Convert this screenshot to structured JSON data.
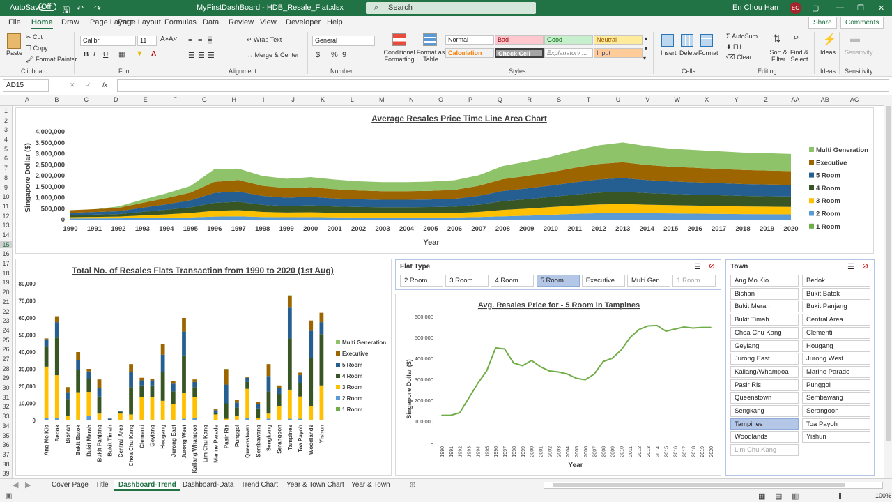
{
  "titlebar": {
    "autosave": "AutoSave",
    "autosave_state": "Off",
    "doc_title": "MyFirstDashBoard - HDB_Resale_Flat.xlsx",
    "search": "Search",
    "user": "En Chou Han",
    "initials": "EC"
  },
  "ribbon_tabs": [
    "File",
    "Home",
    "Draw",
    "Page Layout",
    "Formulas",
    "Data",
    "Review",
    "View",
    "Developer",
    "Help"
  ],
  "share": "Share",
  "comments": "Comments",
  "ribbon": {
    "clipboard": {
      "label": "Clipboard",
      "paste": "Paste",
      "cut": "Cut",
      "copy": "Copy",
      "painter": "Format Painter"
    },
    "font": {
      "label": "Font",
      "name": "Calibri",
      "size": "11",
      "b": "B",
      "i": "I",
      "u": "U"
    },
    "alignment": {
      "label": "Alignment",
      "wrap": "Wrap Text",
      "merge": "Merge & Center"
    },
    "number": {
      "label": "Number",
      "format": "General",
      "cur": "$",
      "pct": "%",
      "comma": "9"
    },
    "styles": {
      "label": "Styles",
      "cond": "Conditional Formatting",
      "fmt_table": "Format as Table",
      "normal": "Normal",
      "bad": "Bad",
      "good": "Good",
      "neutral": "Neutral",
      "calc": "Calculation",
      "check": "Check Cell",
      "expl": "Explanatory ...",
      "input": "Input"
    },
    "cells": {
      "label": "Cells",
      "insert": "Insert",
      "delete": "Delete",
      "format": "Format"
    },
    "editing": {
      "label": "Editing",
      "autosum": "AutoSum",
      "fill": "Fill",
      "clear": "Clear",
      "sort": "Sort & Filter",
      "find": "Find & Select"
    },
    "ideas": {
      "label": "Ideas",
      "btn": "Ideas"
    },
    "sensitivity": {
      "label": "Sensitivity",
      "btn": "Sensitivity"
    }
  },
  "formula_bar": {
    "name_box": "AD15",
    "fx": "fx",
    "value": ""
  },
  "columns": [
    "A",
    "B",
    "C",
    "D",
    "E",
    "F",
    "G",
    "H",
    "I",
    "J",
    "K",
    "L",
    "M",
    "N",
    "O",
    "P",
    "Q",
    "R",
    "S",
    "T",
    "U",
    "V",
    "W",
    "X",
    "Y",
    "Z",
    "AA",
    "AB",
    "AC"
  ],
  "rows": [
    "1",
    "2",
    "3",
    "4",
    "5",
    "6",
    "7",
    "8",
    "9",
    "10",
    "11",
    "12",
    "13",
    "14",
    "15",
    "16",
    "17",
    "18",
    "19",
    "20",
    "21",
    "22",
    "23",
    "24",
    "25",
    "26",
    "27",
    "28",
    "29",
    "30",
    "31",
    "32",
    "33",
    "34",
    "35",
    "36",
    "37",
    "38",
    "39"
  ],
  "chart_data": [
    {
      "type": "area",
      "title": "Average Resales Price Time Line Area Chart",
      "xlabel": "Year",
      "ylabel": "Singapore Dollar ($)",
      "ylim": [
        0,
        4000000
      ],
      "yticks": [
        "4,000,000",
        "3,500,000",
        "3,000,000",
        "2,500,000",
        "2,000,000",
        "1,500,000",
        "1,000,000",
        "500,000",
        "0"
      ],
      "x": [
        "1990",
        "1991",
        "1992",
        "1993",
        "1994",
        "1995",
        "1996",
        "1997",
        "1998",
        "1999",
        "2000",
        "2001",
        "2002",
        "2003",
        "2004",
        "2005",
        "2006",
        "2007",
        "2008",
        "2009",
        "2010",
        "2011",
        "2012",
        "2013",
        "2014",
        "2015",
        "2016",
        "2017",
        "2018",
        "2019",
        "2020"
      ],
      "legend_position": "right",
      "series": [
        {
          "name": "1 Room",
          "color": "#70ad47",
          "values": [
            0,
            0,
            0,
            0,
            0,
            0,
            0,
            0,
            0,
            0,
            0,
            0,
            0,
            0,
            0,
            0,
            0,
            0,
            0,
            0,
            0,
            0,
            0,
            0,
            0,
            0,
            0,
            0,
            0,
            0,
            0
          ]
        },
        {
          "name": "2 Room",
          "color": "#5b9bd5",
          "values": [
            50000,
            55000,
            60000,
            70000,
            80000,
            100000,
            140000,
            150000,
            120000,
            110000,
            115000,
            105000,
            100000,
            100000,
            100000,
            100000,
            100000,
            120000,
            150000,
            180000,
            220000,
            260000,
            290000,
            300000,
            290000,
            280000,
            270000,
            260000,
            250000,
            245000,
            240000
          ]
        },
        {
          "name": "3 Room",
          "color": "#ffc000",
          "values": [
            60000,
            70000,
            80000,
            120000,
            160000,
            200000,
            260000,
            280000,
            230000,
            210000,
            220000,
            200000,
            195000,
            190000,
            190000,
            190000,
            200000,
            230000,
            290000,
            320000,
            350000,
            380000,
            400000,
            410000,
            390000,
            380000,
            370000,
            360000,
            350000,
            345000,
            340000
          ]
        },
        {
          "name": "4 Room",
          "color": "#375623",
          "values": [
            90000,
            100000,
            110000,
            160000,
            210000,
            260000,
            360000,
            380000,
            320000,
            300000,
            310000,
            290000,
            280000,
            275000,
            275000,
            280000,
            290000,
            330000,
            400000,
            430000,
            460000,
            500000,
            540000,
            560000,
            530000,
            510000,
            500000,
            490000,
            480000,
            475000,
            470000
          ]
        },
        {
          "name": "5 Room",
          "color": "#255e91",
          "values": [
            110000,
            120000,
            130000,
            190000,
            250000,
            320000,
            460000,
            470000,
            410000,
            380000,
            390000,
            370000,
            350000,
            340000,
            340000,
            345000,
            355000,
            400000,
            460000,
            490000,
            520000,
            560000,
            600000,
            620000,
            590000,
            570000,
            560000,
            550000,
            540000,
            535000,
            530000
          ]
        },
        {
          "name": "Executive",
          "color": "#9c6500",
          "values": [
            120000,
            130000,
            150000,
            220000,
            280000,
            350000,
            500000,
            520000,
            460000,
            430000,
            440000,
            420000,
            400000,
            390000,
            390000,
            395000,
            410000,
            460000,
            540000,
            570000,
            610000,
            660000,
            700000,
            720000,
            690000,
            670000,
            660000,
            650000,
            640000,
            635000,
            630000
          ]
        },
        {
          "name": "Multi Generation",
          "color": "#8fc36a",
          "values": [
            0,
            0,
            70000,
            150000,
            220000,
            300000,
            580000,
            520000,
            450000,
            430000,
            460000,
            440000,
            420000,
            410000,
            410000,
            420000,
            440000,
            480000,
            600000,
            650000,
            700000,
            780000,
            850000,
            900000,
            850000,
            820000,
            810000,
            800000,
            790000,
            790000,
            780000
          ]
        }
      ]
    },
    {
      "type": "bar",
      "title": "Total No. of Resales Flats Transaction from 1990 to 2020 (1st Aug)",
      "ylim": [
        0,
        80000
      ],
      "yticks": [
        "80,000",
        "70,000",
        "60,000",
        "50,000",
        "40,000",
        "30,000",
        "20,000",
        "10,000",
        "0"
      ],
      "categories": [
        "Ang Mo Kio",
        "Bedok",
        "Bishan",
        "Bukit Batok",
        "Bukit Merah",
        "Bukit Panjang",
        "Bukit Timah",
        "Central Area",
        "Choa Chu Kang",
        "Clementi",
        "Geylang",
        "Hougang",
        "Jurong East",
        "Jurong West",
        "Kallang/Whampoa",
        "Lim Chu Kang",
        "Marine Parade",
        "Pasir Ris",
        "Punggol",
        "Queenstown",
        "Sembawang",
        "Sengkang",
        "Serangoon",
        "Tampines",
        "Toa Payoh",
        "Woodlands",
        "Yishun"
      ],
      "legend_position": "right",
      "series": [
        {
          "name": "1 Room",
          "color": "#70ad47",
          "values": [
            0,
            0,
            0,
            0,
            200,
            0,
            0,
            0,
            0,
            0,
            0,
            0,
            0,
            0,
            0,
            0,
            0,
            0,
            0,
            0,
            0,
            0,
            0,
            0,
            0,
            0,
            0
          ]
        },
        {
          "name": "2 Room",
          "color": "#5b9bd5",
          "values": [
            1500,
            1500,
            0,
            500,
            2500,
            500,
            0,
            500,
            500,
            500,
            500,
            500,
            500,
            1000,
            1500,
            0,
            0,
            0,
            500,
            1500,
            500,
            1000,
            500,
            1000,
            1000,
            500,
            500
          ]
        },
        {
          "name": "3 Room",
          "color": "#ffc000",
          "values": [
            30000,
            25000,
            2500,
            16000,
            14000,
            3500,
            100,
            3500,
            3000,
            13000,
            13000,
            11000,
            9000,
            15000,
            12000,
            0,
            3500,
            1000,
            2000,
            17000,
            1000,
            3000,
            8000,
            17000,
            13000,
            8000,
            20000
          ]
        },
        {
          "name": "4 Room",
          "color": "#375623",
          "values": [
            12000,
            22000,
            10000,
            13000,
            8000,
            10000,
            500,
            1000,
            16000,
            7000,
            7000,
            17000,
            7500,
            22000,
            6000,
            0,
            1000,
            9000,
            5000,
            4000,
            5500,
            13000,
            7000,
            30000,
            8000,
            28000,
            30000
          ]
        },
        {
          "name": "5 Room",
          "color": "#255e91",
          "values": [
            4000,
            9000,
            4000,
            6000,
            4000,
            5000,
            500,
            500,
            9000,
            3000,
            3000,
            10000,
            4500,
            14000,
            3000,
            0,
            1500,
            11000,
            3000,
            2500,
            2500,
            9000,
            3500,
            18000,
            4500,
            16000,
            7000
          ]
        },
        {
          "name": "Executive",
          "color": "#9c6500",
          "values": [
            500,
            3500,
            3000,
            4500,
            1500,
            5000,
            0,
            200,
            4500,
            1500,
            1000,
            6000,
            1500,
            8000,
            1500,
            0,
            500,
            9000,
            1500,
            500,
            1500,
            7000,
            1500,
            7000,
            1500,
            6000,
            5500
          ]
        },
        {
          "name": "Multi Generation",
          "color": "#8fc36a",
          "values": [
            0,
            0,
            0,
            0,
            0,
            0,
            0,
            0,
            0,
            0,
            0,
            0,
            0,
            0,
            0,
            0,
            0,
            200,
            0,
            0,
            0,
            0,
            0,
            300,
            0,
            0,
            0
          ]
        }
      ]
    },
    {
      "type": "line",
      "title": "Avg. Resales Price for - 5 Room in Tampines",
      "xlabel": "Year",
      "ylabel": "Singapore Dollar ($)",
      "ylim": [
        0,
        600000
      ],
      "yticks": [
        "600,000",
        "500,000",
        "400,000",
        "300,000",
        "200,000",
        "100,000",
        "0"
      ],
      "x": [
        "1990",
        "1991",
        "1992",
        "1993",
        "1994",
        "1995",
        "1996",
        "1997",
        "1998",
        "1999",
        "2000",
        "2001",
        "2002",
        "2003",
        "2004",
        "2005",
        "2006",
        "2007",
        "2008",
        "2009",
        "2010",
        "2011",
        "2012",
        "2013",
        "2014",
        "2015",
        "2016",
        "2017",
        "2018",
        "2019",
        "2020"
      ],
      "series": [
        {
          "name": "",
          "color": "#70ad47",
          "values": [
            128000,
            128000,
            140000,
            210000,
            280000,
            340000,
            450000,
            445000,
            378000,
            365000,
            390000,
            360000,
            340000,
            335000,
            325000,
            305000,
            298000,
            325000,
            385000,
            400000,
            440000,
            500000,
            538000,
            555000,
            557000,
            530000,
            540000,
            550000,
            545000,
            548000,
            548000
          ]
        }
      ]
    }
  ],
  "slicers": {
    "flat_type": {
      "title": "Flat Type",
      "items": [
        "2 Room",
        "3 Room",
        "4 Room",
        "5 Room",
        "Executive",
        "Multi Gen...",
        "1 Room"
      ],
      "selected": "5 Room",
      "dimmed": [
        "1 Room"
      ]
    },
    "town": {
      "title": "Town",
      "items": [
        "Ang Mo Kio",
        "Bedok",
        "Bishan",
        "Bukit Batok",
        "Bukit Merah",
        "Bukit Panjang",
        "Bukit Timah",
        "Central Area",
        "Choa Chu Kang",
        "Clementi",
        "Geylang",
        "Hougang",
        "Jurong East",
        "Jurong West",
        "Kallang/Whampoa",
        "Marine Parade",
        "Pasir Ris",
        "Punggol",
        "Queenstown",
        "Sembawang",
        "Sengkang",
        "Serangoon",
        "Tampines",
        "Toa Payoh",
        "Woodlands",
        "Yishun",
        "Lim Chu Kang"
      ],
      "selected": "Tampines",
      "dimmed": [
        "Lim Chu Kang"
      ]
    }
  },
  "sheet_tabs": [
    "Cover Page",
    "Title",
    "Dashboard-Trend",
    "Dashboard-Data",
    "Trend Chart",
    "Year & Town Chart",
    "Year & Town"
  ],
  "active_sheet": "Dashboard-Trend",
  "status": {
    "zoom": "100%"
  }
}
